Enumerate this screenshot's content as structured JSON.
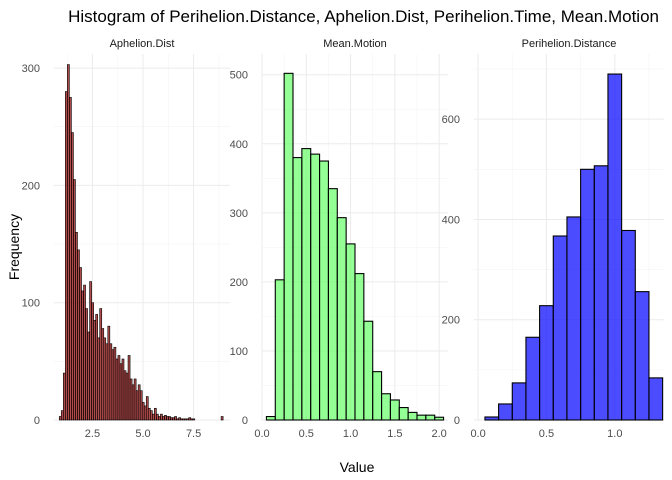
{
  "chart_data": {
    "type": "bar",
    "title": "Histogram of Perihelion.Distance, Aphelion.Dist, Perihelion.Time, Mean.Motion",
    "xlabel": "Value",
    "ylabel": "Frequency",
    "grid": true,
    "legend": "none",
    "panels": [
      {
        "name": "Aphelion.Dist",
        "fill": "#8b0000",
        "xlim": [
          0.6,
          9.3
        ],
        "ylim": [
          0,
          312
        ],
        "xticks": [
          2.5,
          5.0,
          7.5
        ],
        "xtick_labels": [
          "2.5",
          "5.0",
          "7.5"
        ],
        "yticks": [
          0,
          100,
          200,
          300
        ],
        "ytick_labels": [
          "0",
          "100",
          "200",
          "300"
        ],
        "bin_start": 0.86,
        "bin_width": 0.1,
        "values": [
          3,
          8,
          40,
          280,
          303,
          275,
          245,
          205,
          160,
          145,
          130,
          110,
          115,
          95,
          75,
          118,
          100,
          85,
          90,
          70,
          95,
          78,
          70,
          65,
          80,
          65,
          60,
          62,
          52,
          55,
          48,
          52,
          42,
          40,
          55,
          35,
          30,
          35,
          25,
          30,
          25,
          15,
          12,
          20,
          10,
          8,
          5,
          10,
          5,
          3,
          5,
          3,
          4,
          3,
          3,
          2,
          2,
          3,
          1,
          2,
          1,
          1,
          1,
          1,
          2,
          1,
          1,
          0,
          0,
          0,
          0,
          0,
          0,
          0,
          0,
          0,
          0,
          0,
          0,
          0,
          3
        ]
      },
      {
        "name": "Mean.Motion",
        "fill": "#66ff66",
        "xlim": [
          0.0,
          2.1
        ],
        "ylim": [
          0,
          530
        ],
        "xticks": [
          0.0,
          0.5,
          1.0,
          1.5,
          2.0
        ],
        "xtick_labels": [
          "0.0",
          "0.5",
          "1.0",
          "1.5",
          "2.0"
        ],
        "yticks": [
          0,
          100,
          200,
          300,
          400,
          500
        ],
        "ytick_labels": [
          "0",
          "100",
          "200",
          "300",
          "400",
          "500"
        ],
        "bin_start": 0.05,
        "bin_width": 0.1,
        "values": [
          5,
          203,
          502,
          380,
          393,
          385,
          375,
          335,
          293,
          255,
          212,
          143,
          70,
          38,
          29,
          18,
          11,
          7,
          7,
          4
        ]
      },
      {
        "name": "Perihelion.Distance",
        "fill": "#0000ff",
        "xlim": [
          -0.03,
          1.36
        ],
        "ylim": [
          0,
          730
        ],
        "xticks": [
          0.0,
          0.5,
          1.0
        ],
        "xtick_labels": [
          "0.0",
          "0.5",
          "1.0"
        ],
        "yticks": [
          0,
          200,
          400,
          600
        ],
        "ytick_labels": [
          "0",
          "200",
          "400",
          "600"
        ],
        "bin_start": 0.05,
        "bin_width": 0.1,
        "values": [
          6,
          32,
          74,
          165,
          228,
          367,
          405,
          500,
          507,
          690,
          378,
          256,
          84
        ]
      }
    ]
  }
}
